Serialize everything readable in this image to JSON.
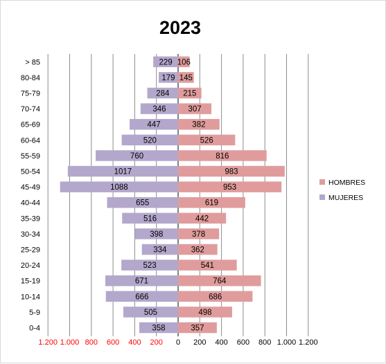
{
  "chart_data": {
    "type": "bar",
    "orientation": "horizontal-population-pyramid",
    "title": "2023",
    "categories": [
      "0-4",
      "5-9",
      "10-14",
      "15-19",
      "20-24",
      "25-29",
      "30-34",
      "35-39",
      "40-44",
      "45-49",
      "50-54",
      "55-59",
      "60-64",
      "65-69",
      "70-74",
      "75-79",
      "80-84",
      "> 85"
    ],
    "series": [
      {
        "name": "HOMBRES",
        "color": "#e09c9c",
        "side": "right",
        "values": [
          357,
          498,
          686,
          764,
          541,
          362,
          378,
          442,
          619,
          953,
          983,
          816,
          526,
          382,
          307,
          215,
          145,
          106
        ]
      },
      {
        "name": "MUJERES",
        "color": "#b4a7cc",
        "side": "left",
        "values": [
          358,
          505,
          666,
          671,
          523,
          334,
          398,
          516,
          655,
          1088,
          1017,
          760,
          520,
          447,
          346,
          284,
          179,
          229
        ]
      }
    ],
    "xlim": [
      -1200,
      1200
    ],
    "tick_labels": [
      "1.200",
      "1.000",
      "800",
      "600",
      "400",
      "200",
      "0",
      "200",
      "400",
      "600",
      "800",
      "1.000",
      "1.200"
    ],
    "negative_tick_color": "#ff0000",
    "grid": "vertical",
    "legend_position": "right"
  }
}
